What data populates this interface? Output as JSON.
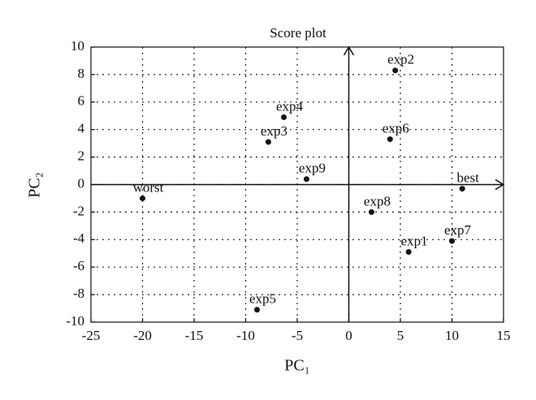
{
  "chart_data": {
    "type": "scatter",
    "title": "Score plot",
    "x_label": "PC₁",
    "y_label": "PC₂",
    "x": [
      -20,
      4.5,
      -6.3,
      -7.8,
      4,
      -4.1,
      11,
      2.2,
      10,
      5.8,
      -8.9
    ],
    "values": [
      -1,
      8.3,
      4.9,
      3.1,
      3.3,
      0.4,
      -0.3,
      -2,
      -4.1,
      -4.9,
      -9.1
    ],
    "point_labels": [
      "worst",
      "exp2",
      "exp4",
      "exp3",
      "exp6",
      "exp9",
      "best",
      "exp8",
      "exp7",
      "exp1",
      "exp5"
    ],
    "color": "#111111",
    "xlim": [
      -25,
      15
    ],
    "xticks": [
      -25,
      -20,
      -15,
      -10,
      -5,
      0,
      5,
      10,
      15
    ],
    "ylim": [
      -10,
      10
    ],
    "yticks": [
      -10,
      -8,
      -6,
      -4,
      -2,
      0,
      2,
      4,
      6,
      8,
      10
    ],
    "grid": true
  }
}
